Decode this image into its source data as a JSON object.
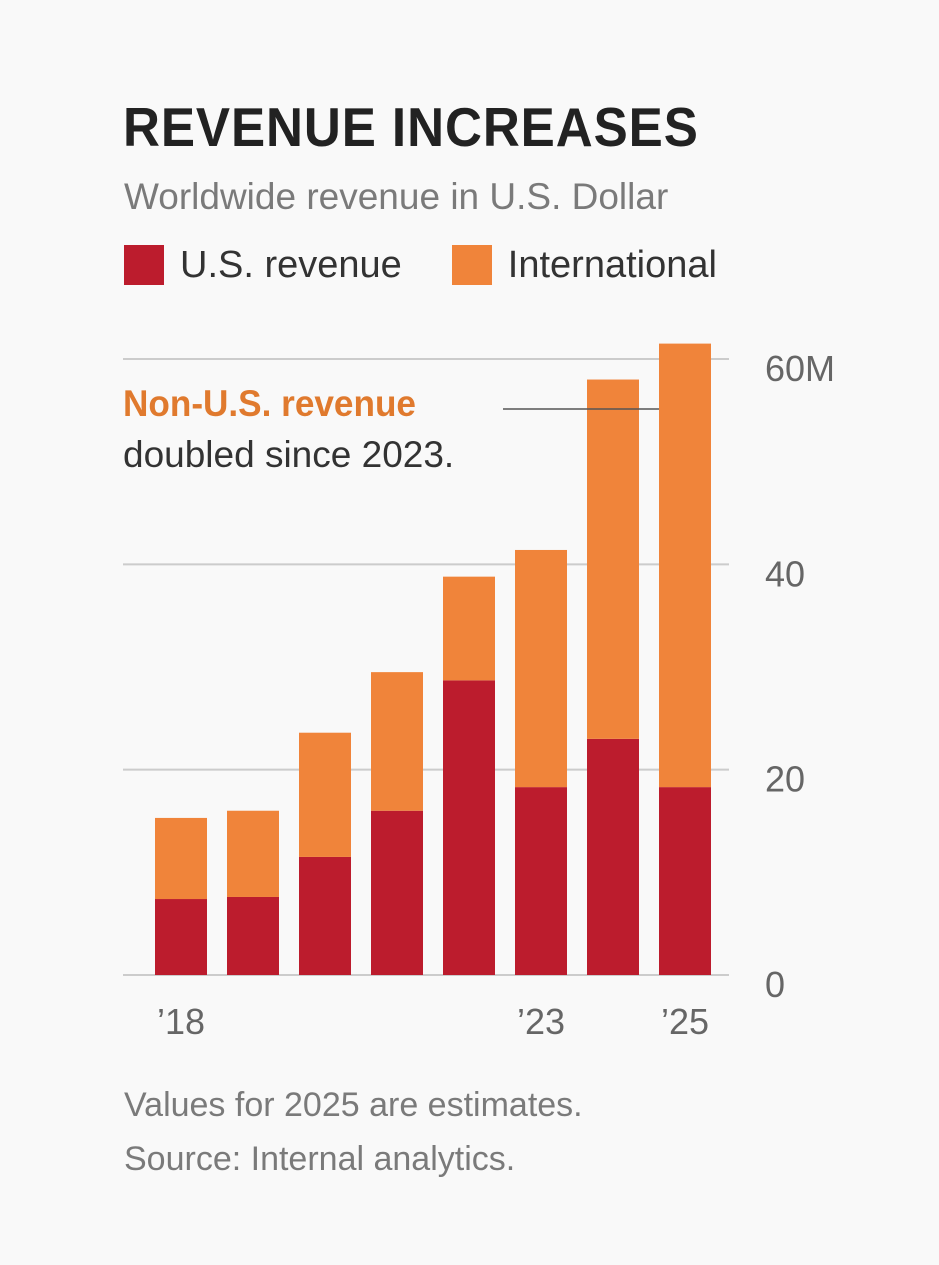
{
  "header": {
    "title": "REVENUE INCREASES",
    "subtitle": "Worldwide revenue in U.S. Dollar"
  },
  "legend": [
    {
      "label": "U.S. revenue",
      "color": "#BC1C2D"
    },
    {
      "label": "International",
      "color": "#F0843A"
    }
  ],
  "annotation": {
    "highlight": "Non-U.S. revenue",
    "text": "doubled since 2023.",
    "highlight_color": "#E07A2E",
    "target_year": 2025
  },
  "footnote": {
    "line1": "Values for 2025 are estimates.",
    "line2": "Source: Internal analytics."
  },
  "chart_data": {
    "type": "bar",
    "stacked": true,
    "title": "REVENUE INCREASES",
    "subtitle": "Worldwide revenue in U.S. Dollar",
    "xlabel": "",
    "ylabel": "",
    "categories": [
      "2018",
      "2019",
      "2020",
      "2021",
      "2022",
      "2023",
      "2024",
      "2025"
    ],
    "x_tick_labels": [
      {
        "category": "2018",
        "label": "’18"
      },
      {
        "category": "2023",
        "label": "’23"
      },
      {
        "category": "2025",
        "label": "’25"
      }
    ],
    "series": [
      {
        "name": "U.S. revenue",
        "color": "#BC1C2D",
        "values": [
          7.4,
          7.6,
          11.5,
          16.0,
          28.7,
          18.3,
          23.0,
          18.3
        ]
      },
      {
        "name": "International",
        "color": "#F0843A",
        "values": [
          7.9,
          8.4,
          12.1,
          13.5,
          10.1,
          23.1,
          35.0,
          43.2
        ]
      }
    ],
    "ylim": [
      0,
      60
    ],
    "y_ticks": [
      0,
      20,
      40,
      60
    ],
    "y_tick_labels": [
      "0",
      "20",
      "40",
      "60M"
    ],
    "y_axis_position": "right",
    "grid": true,
    "legend_position": "top-left"
  }
}
